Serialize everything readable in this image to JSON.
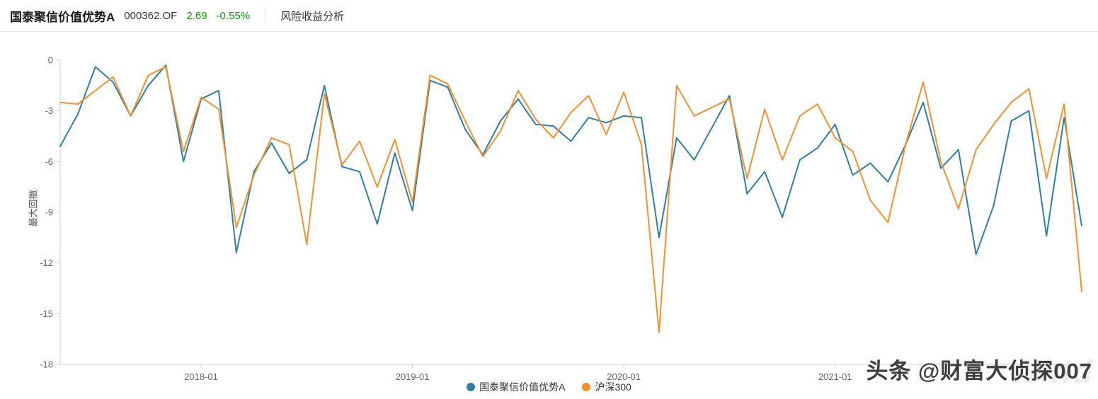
{
  "header": {
    "fund_name": "国泰聚信价值优势A",
    "fund_code": "000362.OF",
    "price": "2.69",
    "change_pct": "-0.55%",
    "change_color": "#0a9a0a",
    "tab_label": "风险收益分析"
  },
  "watermark": {
    "text": "头条 @财富大侦探007",
    "brand": "Wind"
  },
  "chart_data": {
    "type": "line",
    "title": "",
    "xlabel": "",
    "ylabel": "最大回撤",
    "ylim": [
      -18,
      0
    ],
    "yticks": [
      0,
      -3,
      -6,
      -9,
      -12,
      -15,
      -18
    ],
    "xticks": [
      "2018-01",
      "2019-01",
      "2020-01",
      "2021-01"
    ],
    "grid": false,
    "legend_position": "bottom",
    "x": [
      "2017-05",
      "2017-06",
      "2017-07",
      "2017-08",
      "2017-09",
      "2017-10",
      "2017-11",
      "2017-12",
      "2018-01",
      "2018-02",
      "2018-03",
      "2018-04",
      "2018-05",
      "2018-06",
      "2018-07",
      "2018-08",
      "2018-09",
      "2018-10",
      "2018-11",
      "2018-12",
      "2019-01",
      "2019-02",
      "2019-03",
      "2019-04",
      "2019-05",
      "2019-06",
      "2019-07",
      "2019-08",
      "2019-09",
      "2019-10",
      "2019-11",
      "2019-12",
      "2020-01",
      "2020-02",
      "2020-03",
      "2020-04",
      "2020-05",
      "2020-06",
      "2020-07",
      "2020-08",
      "2020-09",
      "2020-10",
      "2020-11",
      "2020-12",
      "2021-01",
      "2021-02",
      "2021-03",
      "2021-04",
      "2021-05",
      "2021-06",
      "2021-07",
      "2021-08",
      "2021-09",
      "2021-10",
      "2021-11",
      "2021-12",
      "2022-01",
      "2022-02",
      "2022-03"
    ],
    "series": [
      {
        "name": "国泰聚信价值优势A",
        "color": "#2f7ea5",
        "values": [
          -5.1,
          -3.2,
          -0.4,
          -1.3,
          -3.3,
          -1.5,
          -0.3,
          -6.0,
          -2.3,
          -1.8,
          -11.4,
          -6.6,
          -4.9,
          -6.7,
          -5.9,
          -1.5,
          -6.3,
          -6.6,
          -9.7,
          -5.5,
          -8.9,
          -1.2,
          -1.6,
          -4.1,
          -5.6,
          -3.6,
          -2.3,
          -3.8,
          -3.9,
          -4.8,
          -3.4,
          -3.7,
          -3.3,
          -3.4,
          -10.5,
          -4.6,
          -5.9,
          -4.0,
          -2.1,
          -7.9,
          -6.6,
          -9.3,
          -5.9,
          -5.2,
          -3.8,
          -6.8,
          -6.1,
          -7.2,
          -5.0,
          -2.5,
          -6.4,
          -5.3,
          -11.5,
          -8.6,
          -3.6,
          -3.0,
          -10.4,
          -3.4,
          -9.8
        ]
      },
      {
        "name": "沪深300",
        "color": "#f5902d",
        "values": [
          -2.5,
          -2.6,
          -1.8,
          -1.0,
          -3.3,
          -0.9,
          -0.4,
          -5.4,
          -2.2,
          -2.9,
          -9.9,
          -6.8,
          -4.6,
          -5.0,
          -10.9,
          -2.0,
          -6.2,
          -4.8,
          -7.5,
          -4.7,
          -8.4,
          -0.9,
          -1.4,
          -3.6,
          -5.7,
          -4.2,
          -1.8,
          -3.5,
          -4.6,
          -3.1,
          -2.1,
          -4.4,
          -1.9,
          -5.0,
          -16.1,
          -1.5,
          -3.3,
          -2.8,
          -2.3,
          -7.0,
          -2.9,
          -5.9,
          -3.3,
          -2.6,
          -4.6,
          -5.4,
          -8.3,
          -9.6,
          -5.0,
          -1.3,
          -6.0,
          -8.8,
          -5.3,
          -3.8,
          -2.5,
          -1.7,
          -7.0,
          -2.6,
          -13.7
        ]
      }
    ]
  }
}
